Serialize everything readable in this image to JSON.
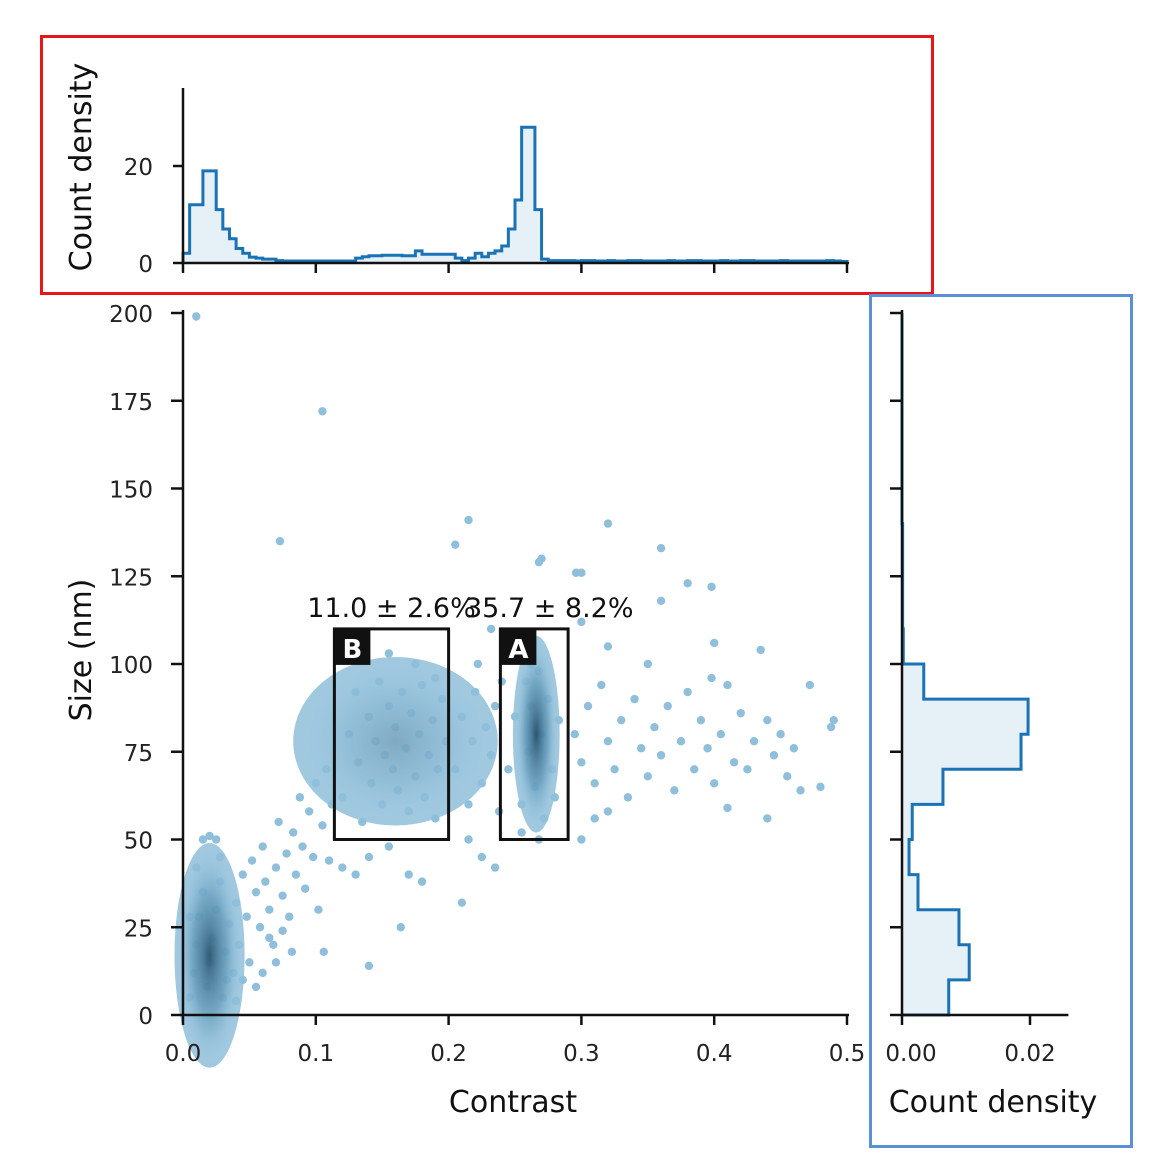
{
  "chart_data": [
    {
      "id": "scatter",
      "type": "scatter",
      "xlabel": "Contrast",
      "ylabel": "Size (nm)",
      "xlim": [
        0,
        0.5
      ],
      "ylim": [
        0,
        200
      ],
      "xticks": [
        "0.0",
        "0.1",
        "0.2",
        "0.3",
        "0.4",
        "0.5"
      ],
      "xtick_values": [
        0,
        0.1,
        0.2,
        0.3,
        0.4,
        0.5
      ],
      "yticks": [
        "0",
        "25",
        "50",
        "75",
        "100",
        "125",
        "150",
        "175",
        "200"
      ],
      "ytick_values": [
        0,
        25,
        50,
        75,
        100,
        125,
        150,
        175,
        200
      ],
      "point_color": "#8fbfdb",
      "density_color": "#1d4a66",
      "density_clusters": [
        {
          "cx": 0.02,
          "cy": 17,
          "sx": 0.012,
          "sy": 16,
          "intensity": 0.85
        },
        {
          "cx": 0.16,
          "cy": 78,
          "sx": 0.035,
          "sy": 12,
          "intensity": 0.25
        },
        {
          "cx": 0.266,
          "cy": 80,
          "sx": 0.008,
          "sy": 14,
          "intensity": 0.9
        }
      ],
      "points": [
        [
          0.01,
          199
        ],
        [
          0.105,
          172
        ],
        [
          0.073,
          135
        ],
        [
          0.215,
          141
        ],
        [
          0.205,
          134
        ],
        [
          0.32,
          140
        ],
        [
          0.36,
          133
        ],
        [
          0.27,
          130
        ],
        [
          0.268,
          129
        ],
        [
          0.3,
          126
        ],
        [
          0.296,
          126
        ],
        [
          0.38,
          123
        ],
        [
          0.398,
          122
        ],
        [
          0.14,
          14
        ],
        [
          0.164,
          25
        ],
        [
          0.106,
          18
        ],
        [
          0.005,
          5
        ],
        [
          0.008,
          12
        ],
        [
          0.01,
          20
        ],
        [
          0.012,
          28
        ],
        [
          0.015,
          35
        ],
        [
          0.018,
          8
        ],
        [
          0.02,
          15
        ],
        [
          0.022,
          22
        ],
        [
          0.025,
          30
        ],
        [
          0.028,
          38
        ],
        [
          0.03,
          5
        ],
        [
          0.032,
          18
        ],
        [
          0.035,
          26
        ],
        [
          0.038,
          12
        ],
        [
          0.04,
          32
        ],
        [
          0.042,
          20
        ],
        [
          0.045,
          40
        ],
        [
          0.048,
          28
        ],
        [
          0.05,
          15
        ],
        [
          0.052,
          44
        ],
        [
          0.055,
          35
        ],
        [
          0.058,
          25
        ],
        [
          0.06,
          48
        ],
        [
          0.062,
          38
        ],
        [
          0.065,
          30
        ],
        [
          0.068,
          20
        ],
        [
          0.07,
          42
        ],
        [
          0.072,
          55
        ],
        [
          0.075,
          34
        ],
        [
          0.078,
          46
        ],
        [
          0.08,
          28
        ],
        [
          0.083,
          52
        ],
        [
          0.085,
          40
        ],
        [
          0.088,
          62
        ],
        [
          0.09,
          48
        ],
        [
          0.092,
          36
        ],
        [
          0.095,
          58
        ],
        [
          0.098,
          45
        ],
        [
          0.1,
          66
        ],
        [
          0.102,
          30
        ],
        [
          0.105,
          54
        ],
        [
          0.108,
          70
        ],
        [
          0.11,
          44
        ],
        [
          0.112,
          60
        ],
        [
          0.015,
          50
        ],
        [
          0.02,
          51
        ],
        [
          0.025,
          50
        ],
        [
          0.01,
          42
        ],
        [
          0.005,
          28
        ],
        [
          0.028,
          45
        ],
        [
          0.033,
          10
        ],
        [
          0.045,
          10
        ],
        [
          0.055,
          8
        ],
        [
          0.06,
          12
        ],
        [
          0.07,
          15
        ],
        [
          0.04,
          4
        ],
        [
          0.065,
          22
        ],
        [
          0.075,
          24
        ],
        [
          0.082,
          18
        ],
        [
          0.12,
          62
        ],
        [
          0.125,
          80
        ],
        [
          0.13,
          92
        ],
        [
          0.132,
          72
        ],
        [
          0.135,
          55
        ],
        [
          0.14,
          85
        ],
        [
          0.142,
          66
        ],
        [
          0.145,
          78
        ],
        [
          0.148,
          95
        ],
        [
          0.15,
          60
        ],
        [
          0.152,
          74
        ],
        [
          0.155,
          88
        ],
        [
          0.158,
          70
        ],
        [
          0.16,
          82
        ],
        [
          0.162,
          64
        ],
        [
          0.165,
          92
        ],
        [
          0.168,
          76
        ],
        [
          0.17,
          58
        ],
        [
          0.172,
          86
        ],
        [
          0.175,
          68
        ],
        [
          0.178,
          80
        ],
        [
          0.18,
          94
        ],
        [
          0.182,
          62
        ],
        [
          0.185,
          74
        ],
        [
          0.188,
          84
        ],
        [
          0.19,
          56
        ],
        [
          0.192,
          70
        ],
        [
          0.195,
          90
        ],
        [
          0.198,
          78
        ],
        [
          0.13,
          40
        ],
        [
          0.14,
          45
        ],
        [
          0.155,
          48
        ],
        [
          0.17,
          40
        ],
        [
          0.18,
          38
        ],
        [
          0.12,
          42
        ],
        [
          0.135,
          104
        ],
        [
          0.155,
          103
        ],
        [
          0.175,
          100
        ],
        [
          0.19,
          96
        ],
        [
          0.205,
          70
        ],
        [
          0.21,
          85
        ],
        [
          0.215,
          60
        ],
        [
          0.218,
          78
        ],
        [
          0.22,
          92
        ],
        [
          0.225,
          66
        ],
        [
          0.228,
          82
        ],
        [
          0.232,
          74
        ],
        [
          0.235,
          88
        ],
        [
          0.238,
          58
        ],
        [
          0.215,
          50
        ],
        [
          0.225,
          45
        ],
        [
          0.21,
          32
        ],
        [
          0.235,
          42
        ],
        [
          0.222,
          100
        ],
        [
          0.232,
          110
        ],
        [
          0.24,
          95
        ],
        [
          0.245,
          70
        ],
        [
          0.25,
          85
        ],
        [
          0.255,
          60
        ],
        [
          0.258,
          95
        ],
        [
          0.26,
          75
        ],
        [
          0.262,
          88
        ],
        [
          0.265,
          65
        ],
        [
          0.268,
          98
        ],
        [
          0.27,
          80
        ],
        [
          0.272,
          56
        ],
        [
          0.275,
          90
        ],
        [
          0.278,
          70
        ],
        [
          0.28,
          62
        ],
        [
          0.283,
          84
        ],
        [
          0.255,
          52
        ],
        [
          0.268,
          50
        ],
        [
          0.262,
          100
        ],
        [
          0.295,
          80
        ],
        [
          0.3,
          72
        ],
        [
          0.305,
          88
        ],
        [
          0.31,
          66
        ],
        [
          0.315,
          94
        ],
        [
          0.32,
          78
        ],
        [
          0.325,
          70
        ],
        [
          0.33,
          84
        ],
        [
          0.335,
          62
        ],
        [
          0.34,
          90
        ],
        [
          0.345,
          76
        ],
        [
          0.35,
          68
        ],
        [
          0.355,
          82
        ],
        [
          0.36,
          74
        ],
        [
          0.365,
          88
        ],
        [
          0.37,
          64
        ],
        [
          0.375,
          78
        ],
        [
          0.38,
          92
        ],
        [
          0.385,
          70
        ],
        [
          0.39,
          84
        ],
        [
          0.395,
          76
        ],
        [
          0.4,
          66
        ],
        [
          0.405,
          80
        ],
        [
          0.41,
          94
        ],
        [
          0.415,
          72
        ],
        [
          0.42,
          86
        ],
        [
          0.425,
          70
        ],
        [
          0.43,
          78
        ],
        [
          0.435,
          104
        ],
        [
          0.44,
          84
        ],
        [
          0.445,
          74
        ],
        [
          0.45,
          80
        ],
        [
          0.455,
          68
        ],
        [
          0.46,
          76
        ],
        [
          0.465,
          64
        ],
        [
          0.472,
          94
        ],
        [
          0.48,
          65
        ],
        [
          0.488,
          82
        ],
        [
          0.49,
          84
        ],
        [
          0.3,
          50
        ],
        [
          0.31,
          56
        ],
        [
          0.32,
          58
        ],
        [
          0.41,
          59
        ],
        [
          0.44,
          56
        ],
        [
          0.3,
          112
        ],
        [
          0.32,
          105
        ],
        [
          0.35,
          100
        ],
        [
          0.398,
          96
        ],
        [
          0.36,
          118
        ],
        [
          0.4,
          106
        ]
      ],
      "annotations": [
        {
          "label": "B",
          "text": "11.0 ± 2.6%",
          "x0": 0.114,
          "x1": 0.2,
          "y0": 50,
          "y1": 110
        },
        {
          "label": "A",
          "text": "35.7 ± 8.2%",
          "x0": 0.239,
          "x1": 0.29,
          "y0": 50,
          "y1": 110
        }
      ]
    },
    {
      "id": "top-histogram",
      "type": "histogram",
      "ylabel": "Count density",
      "xlim": [
        0,
        0.5
      ],
      "ylim": [
        0,
        35
      ],
      "yticks": [
        "0",
        "20"
      ],
      "ytick_values": [
        0,
        20
      ],
      "bin_start": 0,
      "bin_width": 0.005,
      "values": [
        2,
        12,
        12,
        19,
        19,
        11,
        7,
        5,
        3,
        2,
        1.2,
        1,
        0.8,
        0.8,
        0.5,
        0.4,
        0.4,
        0.4,
        0.4,
        0.4,
        0.4,
        0.4,
        0.4,
        0.4,
        0.4,
        0.4,
        1,
        1.3,
        1.5,
        1.5,
        1.6,
        1.6,
        1.6,
        1.5,
        1.5,
        2.5,
        1.8,
        1.8,
        1.8,
        1.8,
        1.8,
        1,
        0.5,
        1,
        2,
        1.3,
        2,
        2.5,
        3.5,
        7,
        13,
        28,
        28,
        11,
        0.8,
        0.5,
        0.5,
        0.5,
        0.5,
        0.4,
        0.5,
        0.5,
        0.4,
        0.4,
        0.5,
        0.4,
        0.4,
        0.5,
        0.5,
        0.4,
        0.4,
        0.4,
        0.4,
        0.5,
        0.4,
        0.4,
        0.5,
        0.5,
        0.4,
        0.4,
        0.4,
        0.5,
        0.4,
        0.4,
        0.5,
        0.5,
        0.4,
        0.4,
        0.4,
        0.4,
        0.5,
        0.4,
        0.4,
        0.4,
        0.4,
        0.4,
        0.4,
        0.5,
        0.4,
        0.3
      ],
      "color": "#1a73b5",
      "fill": "#e6f0f7"
    },
    {
      "id": "right-histogram",
      "type": "histogram",
      "orientation": "horizontal",
      "xlabel": "Count density",
      "xlim": [
        0,
        0.026
      ],
      "xticks": [
        "0.00",
        "0.02"
      ],
      "xtick_values": [
        0,
        0.02
      ],
      "ylim": [
        0,
        200
      ],
      "bin_start": 0,
      "bin_width": 10,
      "values": [
        0.0073,
        0.0105,
        0.0089,
        0.0025,
        0.0011,
        0.0016,
        0.0064,
        0.0186,
        0.0197,
        0.0034,
        0.0002,
        0.0001,
        0.0001,
        0.0001,
        0,
        0,
        0,
        0,
        0,
        0
      ],
      "color": "#1a73b5",
      "fill": "#e6f0f7"
    }
  ],
  "highlight_colors": {
    "top_box": "#e8161b",
    "right_box": "#5b8fd6"
  }
}
